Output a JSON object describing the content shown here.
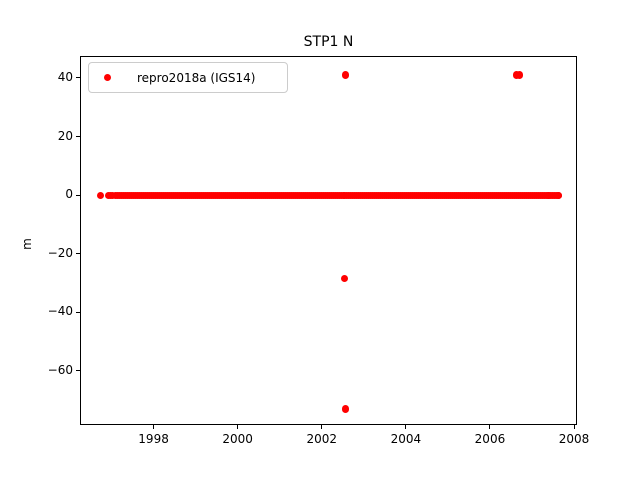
{
  "chart_data": {
    "type": "scatter",
    "title": "STP1 N",
    "xlabel": "",
    "ylabel": "m",
    "grid": false,
    "xlim": [
      1996.25,
      2008.07
    ],
    "ylim": [
      -78.5,
      47.5
    ],
    "xticks": [
      1998,
      2000,
      2002,
      2004,
      2006,
      2008
    ],
    "yticks": [
      40,
      20,
      0,
      -20,
      -40,
      -60
    ],
    "legend": {
      "label": "repro2018a (IGS14)",
      "position": "upper left",
      "marker_color": "#ff0000"
    },
    "series": [
      {
        "name": "repro2018a (IGS14)",
        "color": "#ff0000",
        "marker": "point",
        "dense_band": {
          "y": 0,
          "isolated_x": [
            1996.74,
            1996.93,
            1996.98,
            1997.03
          ],
          "segments": [
            [
              1997.1,
              2002.53
            ],
            [
              2002.58,
              2006.48
            ],
            [
              2006.53,
              2007.4
            ],
            [
              2007.44,
              2007.64
            ]
          ]
        },
        "outliers": [
          [
            2002.56,
            41
          ],
          [
            2006.63,
            41
          ],
          [
            2006.7,
            41
          ],
          [
            2002.54,
            -28.5
          ],
          [
            2002.56,
            -73
          ]
        ]
      }
    ]
  }
}
